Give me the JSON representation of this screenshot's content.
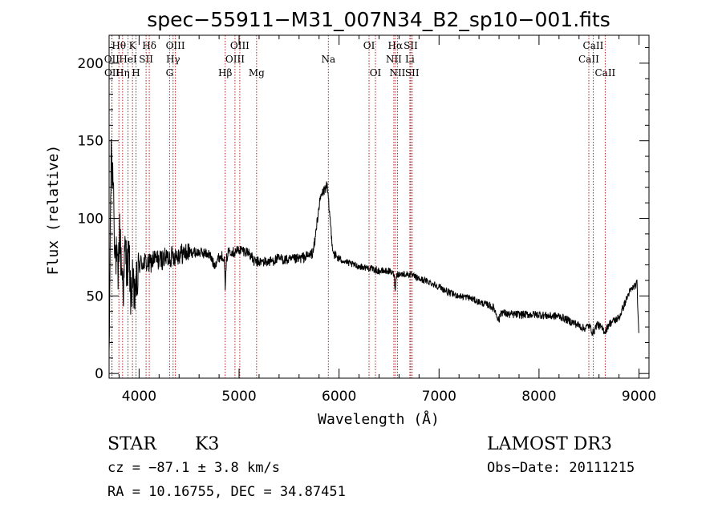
{
  "chart_data": {
    "type": "line",
    "title": "spec−55911−M31_007N34_B2_sp10−001.fits",
    "xlabel": "Wavelength (Å)",
    "ylabel": "Flux (relative)",
    "xlim": [
      3700,
      9100
    ],
    "ylim": [
      -3,
      218
    ],
    "xticks": [
      4000,
      5000,
      6000,
      7000,
      8000,
      9000
    ],
    "yticks": [
      0,
      50,
      100,
      150,
      200
    ],
    "grid": false,
    "series": [
      {
        "name": "flux",
        "anchors": [
          [
            3700,
            0
          ],
          [
            3705,
            40
          ],
          [
            3712,
            95
          ],
          [
            3718,
            125
          ],
          [
            3725,
            150
          ],
          [
            3732,
            118
          ],
          [
            3740,
            135
          ],
          [
            3750,
            100
          ],
          [
            3760,
            80
          ],
          [
            3775,
            72
          ],
          [
            3790,
            60
          ],
          [
            3805,
            95
          ],
          [
            3815,
            78
          ],
          [
            3830,
            65
          ],
          [
            3845,
            55
          ],
          [
            3860,
            82
          ],
          [
            3880,
            68
          ],
          [
            3900,
            76
          ],
          [
            3920,
            45
          ],
          [
            3935,
            68
          ],
          [
            3950,
            40
          ],
          [
            3965,
            60
          ],
          [
            3980,
            55
          ],
          [
            4000,
            70
          ],
          [
            4050,
            72
          ],
          [
            4100,
            70
          ],
          [
            4150,
            74
          ],
          [
            4200,
            73
          ],
          [
            4250,
            74
          ],
          [
            4300,
            75
          ],
          [
            4400,
            77
          ],
          [
            4500,
            78
          ],
          [
            4600,
            78
          ],
          [
            4700,
            77
          ],
          [
            4750,
            70
          ],
          [
            4800,
            75
          ],
          [
            4850,
            76
          ],
          [
            4862,
            55
          ],
          [
            4875,
            74
          ],
          [
            4900,
            80
          ],
          [
            4950,
            78
          ],
          [
            5000,
            80
          ],
          [
            5100,
            78
          ],
          [
            5150,
            72
          ],
          [
            5200,
            72
          ],
          [
            5300,
            72
          ],
          [
            5400,
            74
          ],
          [
            5500,
            73
          ],
          [
            5600,
            74
          ],
          [
            5700,
            76
          ],
          [
            5740,
            78
          ],
          [
            5760,
            86
          ],
          [
            5780,
            98
          ],
          [
            5800,
            108
          ],
          [
            5820,
            114
          ],
          [
            5840,
            117
          ],
          [
            5860,
            119
          ],
          [
            5880,
            121
          ],
          [
            5895,
            110
          ],
          [
            5910,
            100
          ],
          [
            5925,
            88
          ],
          [
            5940,
            79
          ],
          [
            5960,
            76
          ],
          [
            6000,
            74
          ],
          [
            6100,
            71
          ],
          [
            6200,
            69
          ],
          [
            6300,
            68
          ],
          [
            6400,
            66
          ],
          [
            6500,
            66
          ],
          [
            6550,
            64
          ],
          [
            6563,
            54
          ],
          [
            6575,
            64
          ],
          [
            6600,
            64
          ],
          [
            6700,
            64
          ],
          [
            6800,
            61
          ],
          [
            6900,
            59
          ],
          [
            7000,
            56
          ],
          [
            7100,
            52
          ],
          [
            7200,
            50
          ],
          [
            7300,
            49
          ],
          [
            7400,
            46
          ],
          [
            7500,
            44
          ],
          [
            7550,
            42
          ],
          [
            7600,
            34
          ],
          [
            7620,
            40
          ],
          [
            7650,
            39
          ],
          [
            7700,
            38
          ],
          [
            7800,
            38
          ],
          [
            7900,
            38
          ],
          [
            8000,
            38
          ],
          [
            8100,
            37
          ],
          [
            8200,
            37
          ],
          [
            8300,
            34
          ],
          [
            8400,
            31
          ],
          [
            8450,
            29
          ],
          [
            8500,
            31
          ],
          [
            8542,
            26
          ],
          [
            8580,
            32
          ],
          [
            8662,
            27
          ],
          [
            8700,
            32
          ],
          [
            8750,
            34
          ],
          [
            8800,
            36
          ],
          [
            8850,
            44
          ],
          [
            8900,
            52
          ],
          [
            8950,
            56
          ],
          [
            8980,
            58
          ],
          [
            9000,
            20
          ]
        ]
      }
    ],
    "lines": [
      {
        "label": "Hθ",
        "wave": 3798,
        "row": 1
      },
      {
        "label": "OII",
        "wave": 3727,
        "row": 2
      },
      {
        "label": "OII",
        "wave": 3729,
        "row": 3
      },
      {
        "label": "K",
        "wave": 3934,
        "row": 1
      },
      {
        "label": "HeI",
        "wave": 3889,
        "row": 2
      },
      {
        "label": "Hη",
        "wave": 3835,
        "row": 3
      },
      {
        "label": "Hδ",
        "wave": 4102,
        "row": 1
      },
      {
        "label": "SII",
        "wave": 4070,
        "row": 2
      },
      {
        "label": "H",
        "wave": 3969,
        "row": 3
      },
      {
        "label": "OIII",
        "wave": 4363,
        "row": 1
      },
      {
        "label": "Hγ",
        "wave": 4340,
        "row": 2
      },
      {
        "label": "G",
        "wave": 4305,
        "row": 3
      },
      {
        "label": "OIII",
        "wave": 5007,
        "row": 1
      },
      {
        "label": "OIII",
        "wave": 4959,
        "row": 2
      },
      {
        "label": "Hβ",
        "wave": 4861,
        "row": 3
      },
      {
        "label": "Mg",
        "wave": 5175,
        "row": 3
      },
      {
        "label": "Na",
        "wave": 5893,
        "row": 2
      },
      {
        "label": "OI",
        "wave": 6300,
        "row": 1
      },
      {
        "label": "OI",
        "wave": 6364,
        "row": 3
      },
      {
        "label": "Hα",
        "wave": 6563,
        "row": 1
      },
      {
        "label": "NII",
        "wave": 6548,
        "row": 2
      },
      {
        "label": "NII",
        "wave": 6584,
        "row": 3
      },
      {
        "label": "SII",
        "wave": 6717,
        "row": 1
      },
      {
        "label": "Li",
        "wave": 6708,
        "row": 2
      },
      {
        "label": "SII",
        "wave": 6731,
        "row": 3
      },
      {
        "label": "CaII",
        "wave": 8542,
        "row": 1
      },
      {
        "label": "CaII",
        "wave": 8498,
        "row": 2
      },
      {
        "label": "CaII",
        "wave": 8662,
        "row": 3
      }
    ]
  },
  "info": {
    "class": "STAR",
    "subclass": "K3",
    "cz": "cz = −87.1 ± 3.8 km/s",
    "coords": "RA =  10.16755, DEC =  34.87451",
    "survey": "LAMOST DR3",
    "obs_date": "Obs−Date: 20111215"
  }
}
